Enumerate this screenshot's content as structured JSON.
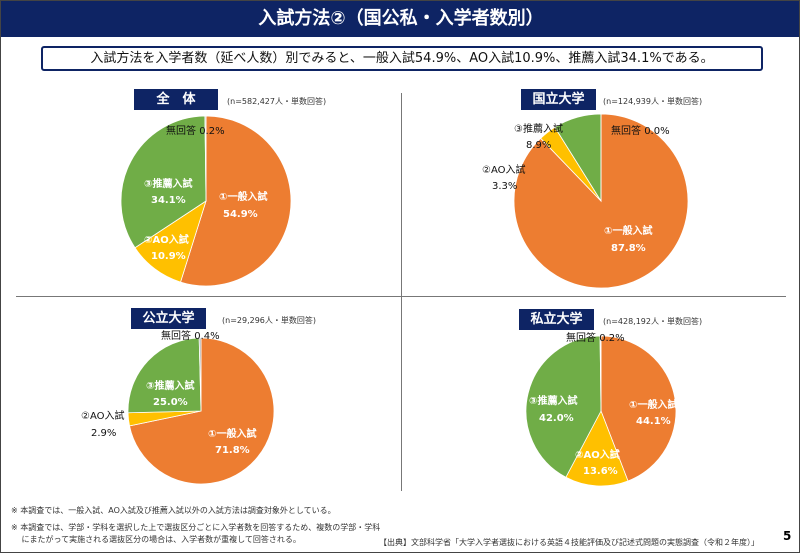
{
  "header": {
    "title": "入試方法②（国公私・入学者数別）"
  },
  "summary": "入試方法を入学者数（延べ人数）別でみると、一般入試54.9%、AO入試10.9%、推薦入試34.1%である。",
  "colors": {
    "header_bg": "#0e2464",
    "general": "#ED7D31",
    "ao": "#FFC000",
    "recommend": "#70AD47",
    "no_answer": "#A5A5A5"
  },
  "chart_data": [
    {
      "type": "pie",
      "title": "全　体",
      "note": "(n=582,427人・単数回答)",
      "categories": [
        "①一般入試",
        "②AO入試",
        "③推薦入試",
        "無回答"
      ],
      "values": [
        54.9,
        10.9,
        34.1,
        0.2
      ],
      "value_labels": [
        "54.9%",
        "10.9%",
        "34.1%",
        "0.2%"
      ]
    },
    {
      "type": "pie",
      "title": "国立大学",
      "note": "(n=124,939人・単数回答)",
      "categories": [
        "①一般入試",
        "②AO入試",
        "③推薦入試",
        "無回答"
      ],
      "values": [
        87.8,
        3.3,
        8.9,
        0.0
      ],
      "value_labels": [
        "87.8%",
        "3.3%",
        "8.9%",
        "0.0%"
      ]
    },
    {
      "type": "pie",
      "title": "公立大学",
      "note": "(n=29,296人・単数回答)",
      "categories": [
        "①一般入試",
        "②AO入試",
        "③推薦入試",
        "無回答"
      ],
      "values": [
        71.8,
        2.9,
        25.0,
        0.4
      ],
      "value_labels": [
        "71.8%",
        "2.9%",
        "25.0%",
        "0.4%"
      ]
    },
    {
      "type": "pie",
      "title": "私立大学",
      "note": "(n=428,192人・単数回答)",
      "categories": [
        "①一般入試",
        "②AO入試",
        "③推薦入試",
        "無回答"
      ],
      "values": [
        44.1,
        13.6,
        42.0,
        0.2
      ],
      "value_labels": [
        "44.1%",
        "13.6%",
        "42.0%",
        "0.2%"
      ]
    }
  ],
  "footnotes": [
    "※ 本調査では、一般入試、AO入試及び推薦入試以外の入試方法は調査対象外としている。",
    "※ 本調査では、学部・学科を選択した上で選抜区分ごとに入学者数を回答するため、複数の学部・学科",
    "　 にまたがって実施される選抜区分の場合は、入学者数が重複して回答される。"
  ],
  "source": "【出典】文部科学省「大学入学者選抜における英語４技能評価及び記述式問題の実態調査（令和２年度）」",
  "page_number": "5"
}
